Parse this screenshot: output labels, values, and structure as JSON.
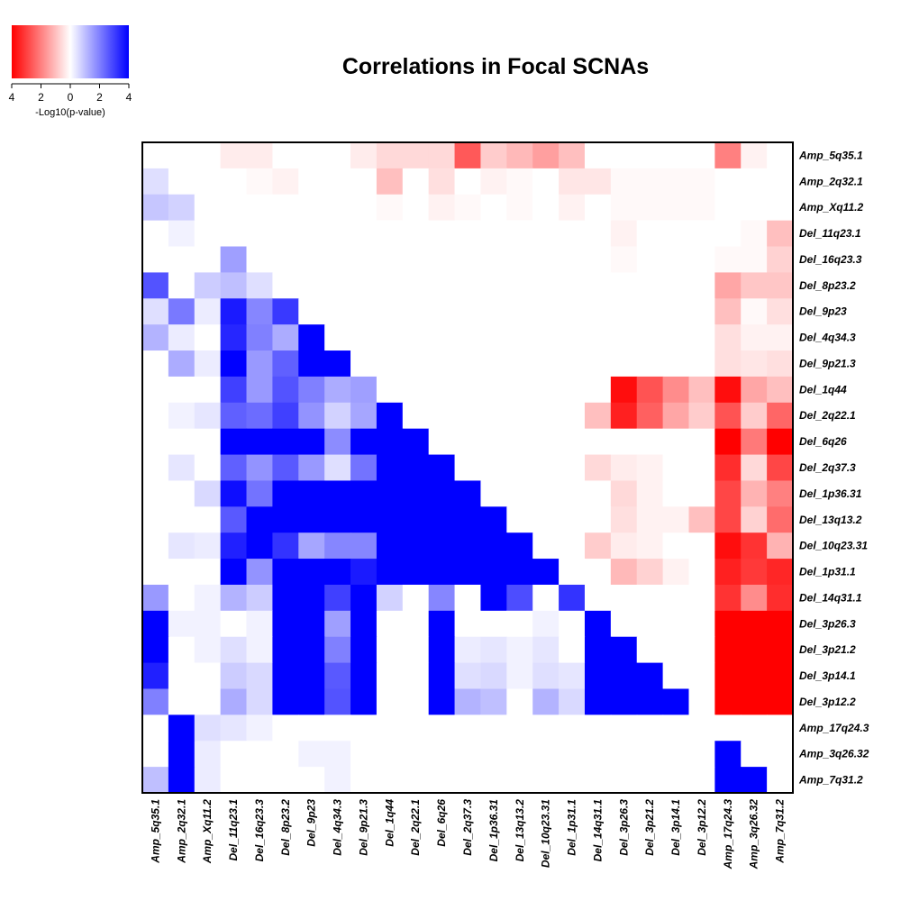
{
  "chart_data": {
    "type": "heatmap",
    "title": "Correlations in Focal SCNAs",
    "legend": {
      "label": "-Log10(p-value)",
      "ticks": [
        "4",
        "2",
        "0",
        "2",
        "4"
      ],
      "low_color": "#ff0000",
      "mid_color": "#ffffff",
      "high_color": "#0000ff",
      "range": [
        -4,
        4
      ],
      "placement": "top-left"
    },
    "sign_convention": "negative = red, positive = blue",
    "columns": [
      "Amp_5q35.1",
      "Amp_2q32.1",
      "Amp_Xq11.2",
      "Del_11q23.1",
      "Del_16q23.3",
      "Del_8p23.2",
      "Del_9p23",
      "Del_4q34.3",
      "Del_9p21.3",
      "Del_1q44",
      "Del_2q22.1",
      "Del_6q26",
      "Del_2q37.3",
      "Del_1p36.31",
      "Del_13q13.2",
      "Del_10q23.31",
      "Del_1p31.1",
      "Del_14q31.1",
      "Del_3p26.3",
      "Del_3p21.2",
      "Del_3p14.1",
      "Del_3p12.2",
      "Amp_17q24.3",
      "Amp_3q26.32",
      "Amp_7q31.2"
    ],
    "rows": [
      "Amp_5q35.1",
      "Amp_2q32.1",
      "Amp_Xq11.2",
      "Del_11q23.1",
      "Del_16q23.3",
      "Del_8p23.2",
      "Del_9p23",
      "Del_4q34.3",
      "Del_9p21.3",
      "Del_1q44",
      "Del_2q22.1",
      "Del_6q26",
      "Del_2q37.3",
      "Del_1p36.31",
      "Del_13q13.2",
      "Del_10q23.31",
      "Del_1p31.1",
      "Del_14q31.1",
      "Del_3p26.3",
      "Del_3p21.2",
      "Del_3p14.1",
      "Del_3p12.2",
      "Amp_17q24.3",
      "Amp_3q26.32",
      "Amp_7q31.2"
    ],
    "values": [
      [
        0,
        0,
        0,
        -0.3,
        -0.3,
        0,
        0,
        0,
        -0.3,
        -0.6,
        -0.6,
        -0.6,
        -2.6,
        -0.8,
        -1.1,
        -1.5,
        -1,
        0,
        0,
        0,
        0,
        0,
        -2,
        -0.2,
        0
      ],
      [
        0.5,
        0,
        0,
        0,
        -0.1,
        -0.2,
        0,
        0,
        0,
        -1,
        0,
        -0.5,
        0,
        -0.2,
        -0.1,
        0,
        -0.4,
        -0.4,
        -0.1,
        -0.1,
        -0.1,
        -0.1,
        0,
        0,
        0
      ],
      [
        0.9,
        0.7,
        0,
        0,
        0,
        0,
        0,
        0,
        0,
        -0.1,
        0,
        -0.2,
        -0.1,
        0,
        -0.1,
        0,
        -0.2,
        0,
        -0.1,
        -0.1,
        -0.1,
        -0.1,
        0,
        0,
        0
      ],
      [
        0,
        0.2,
        0,
        0,
        0,
        0,
        0,
        0,
        0,
        0,
        0,
        0,
        0,
        0,
        0,
        0,
        0,
        0,
        -0.2,
        0,
        0,
        0,
        0,
        -0.1,
        -1
      ],
      [
        0,
        0,
        0,
        1.5,
        0,
        0,
        0,
        0,
        0,
        0,
        0,
        0,
        0,
        0,
        0,
        0,
        0,
        0,
        -0.1,
        0,
        0,
        0,
        -0.1,
        -0.1,
        -0.7
      ],
      [
        2.7,
        0,
        0.8,
        1,
        0.5,
        0,
        0,
        0,
        0,
        0,
        0,
        0,
        0,
        0,
        0,
        0,
        0,
        0,
        0,
        0,
        0,
        0,
        -1.4,
        -0.9,
        -0.9
      ],
      [
        0.5,
        2.1,
        0.3,
        3.6,
        1.9,
        3.1,
        0,
        0,
        0,
        0,
        0,
        0,
        0,
        0,
        0,
        0,
        0,
        0,
        0,
        0,
        0,
        0,
        -1,
        -0.1,
        -0.5
      ],
      [
        1.2,
        0.3,
        0,
        3.4,
        2,
        1.3,
        4,
        0,
        0,
        0,
        0,
        0,
        0,
        0,
        0,
        0,
        0,
        0,
        0,
        0,
        0,
        0,
        -0.5,
        -0.2,
        -0.2
      ],
      [
        0,
        1.3,
        0.3,
        4,
        1.6,
        2.5,
        4,
        4,
        0,
        0,
        0,
        0,
        0,
        0,
        0,
        0,
        0,
        0,
        0,
        0,
        0,
        0,
        -0.5,
        -0.4,
        -0.5
      ],
      [
        0,
        0,
        0,
        3,
        1.6,
        2.7,
        2,
        1.3,
        1.5,
        0,
        0,
        0,
        0,
        0,
        0,
        0,
        0,
        0,
        -3.8,
        -2.7,
        -1.8,
        -1,
        -3.8,
        -1.4,
        -1
      ],
      [
        0,
        0.2,
        0.4,
        2.5,
        2.3,
        3,
        1.7,
        0.7,
        1.4,
        4,
        0,
        0,
        0,
        0,
        0,
        0,
        0,
        -1,
        -3.5,
        -2.5,
        -1.4,
        -0.8,
        -2.7,
        -0.8,
        -2.4
      ],
      [
        0,
        0,
        0,
        4,
        4,
        4,
        4,
        1.8,
        4,
        4,
        4,
        0,
        0,
        0,
        0,
        0,
        0,
        0,
        0,
        0,
        0,
        0,
        -4,
        -2.1,
        -4
      ],
      [
        0,
        0.4,
        0,
        2.5,
        1.7,
        2.6,
        1.6,
        0.5,
        2.2,
        4,
        4,
        4,
        0,
        0,
        0,
        0,
        0,
        -0.6,
        -0.3,
        -0.2,
        0,
        0,
        -3.3,
        -0.6,
        -2.9
      ],
      [
        0,
        0,
        0.6,
        3.8,
        2.2,
        4,
        4,
        4,
        4,
        4,
        4,
        4,
        4,
        0,
        0,
        0,
        0,
        0,
        -0.6,
        -0.2,
        0,
        0,
        -2.9,
        -1.2,
        -2
      ],
      [
        0,
        0,
        0,
        2.6,
        4,
        4,
        4,
        4,
        4,
        4,
        4,
        4,
        4,
        4,
        0,
        0,
        0,
        0,
        -0.5,
        -0.2,
        -0.2,
        -1,
        -2.9,
        -0.7,
        -2.3
      ],
      [
        0,
        0.4,
        0.3,
        3.5,
        4,
        3.2,
        1.4,
        1.9,
        1.9,
        4,
        4,
        4,
        4,
        4,
        4,
        0,
        0,
        -0.8,
        -0.3,
        -0.2,
        0,
        0,
        -3.8,
        -3.2,
        -1.2
      ],
      [
        0,
        0,
        0,
        4,
        1.7,
        4,
        4,
        4,
        3.6,
        4,
        4,
        4,
        4,
        4,
        4,
        4,
        0,
        0,
        -1.1,
        -0.7,
        -0.2,
        0,
        -3.5,
        -3.1,
        -3.4
      ],
      [
        1.6,
        0,
        0.2,
        1.2,
        0.8,
        4,
        4,
        3,
        4,
        0.7,
        0,
        1.9,
        0,
        4,
        2.8,
        0,
        3.2,
        0,
        0,
        0,
        0,
        0,
        -3.2,
        -1.8,
        -3.3
      ],
      [
        4,
        0.2,
        0.2,
        0,
        0.2,
        4,
        4,
        1.5,
        4,
        0,
        0,
        4,
        0,
        0,
        0,
        0.2,
        0,
        4,
        0,
        0,
        0,
        0,
        -4,
        -4,
        -4
      ],
      [
        4,
        0,
        0.2,
        0.5,
        0.2,
        4,
        4,
        2,
        4,
        0,
        0,
        4,
        0.3,
        0.4,
        0.2,
        0.4,
        0,
        4,
        4,
        0,
        0,
        0,
        -4,
        -4,
        -4
      ],
      [
        3.5,
        0,
        0,
        0.8,
        0.6,
        4,
        4,
        2.6,
        4,
        0,
        0,
        4,
        0.5,
        0.6,
        0.2,
        0.5,
        0.4,
        4,
        4,
        4,
        0,
        0,
        -4,
        -4,
        -4
      ],
      [
        2,
        0,
        0,
        1.3,
        0.6,
        4,
        4,
        2.7,
        4,
        0,
        0,
        4,
        1.2,
        1,
        0,
        1.2,
        0.6,
        4,
        4,
        4,
        4,
        0,
        -4,
        -4,
        -4
      ],
      [
        0,
        4,
        0.5,
        0.4,
        0.2,
        0,
        0,
        0,
        0,
        0,
        0,
        0,
        0,
        0,
        0,
        0,
        0,
        0,
        0,
        0,
        0,
        0,
        0,
        0,
        0
      ],
      [
        0,
        4,
        0.3,
        0,
        0,
        0,
        0.2,
        0.2,
        0,
        0,
        0,
        0,
        0,
        0,
        0,
        0,
        0,
        0,
        0,
        0,
        0,
        0,
        4,
        0,
        0
      ],
      [
        1,
        4,
        0.3,
        0,
        0,
        0,
        0,
        0.2,
        0,
        0,
        0,
        0,
        0,
        0,
        0,
        0,
        0,
        0,
        0,
        0,
        0,
        0,
        4,
        4,
        0
      ]
    ]
  }
}
